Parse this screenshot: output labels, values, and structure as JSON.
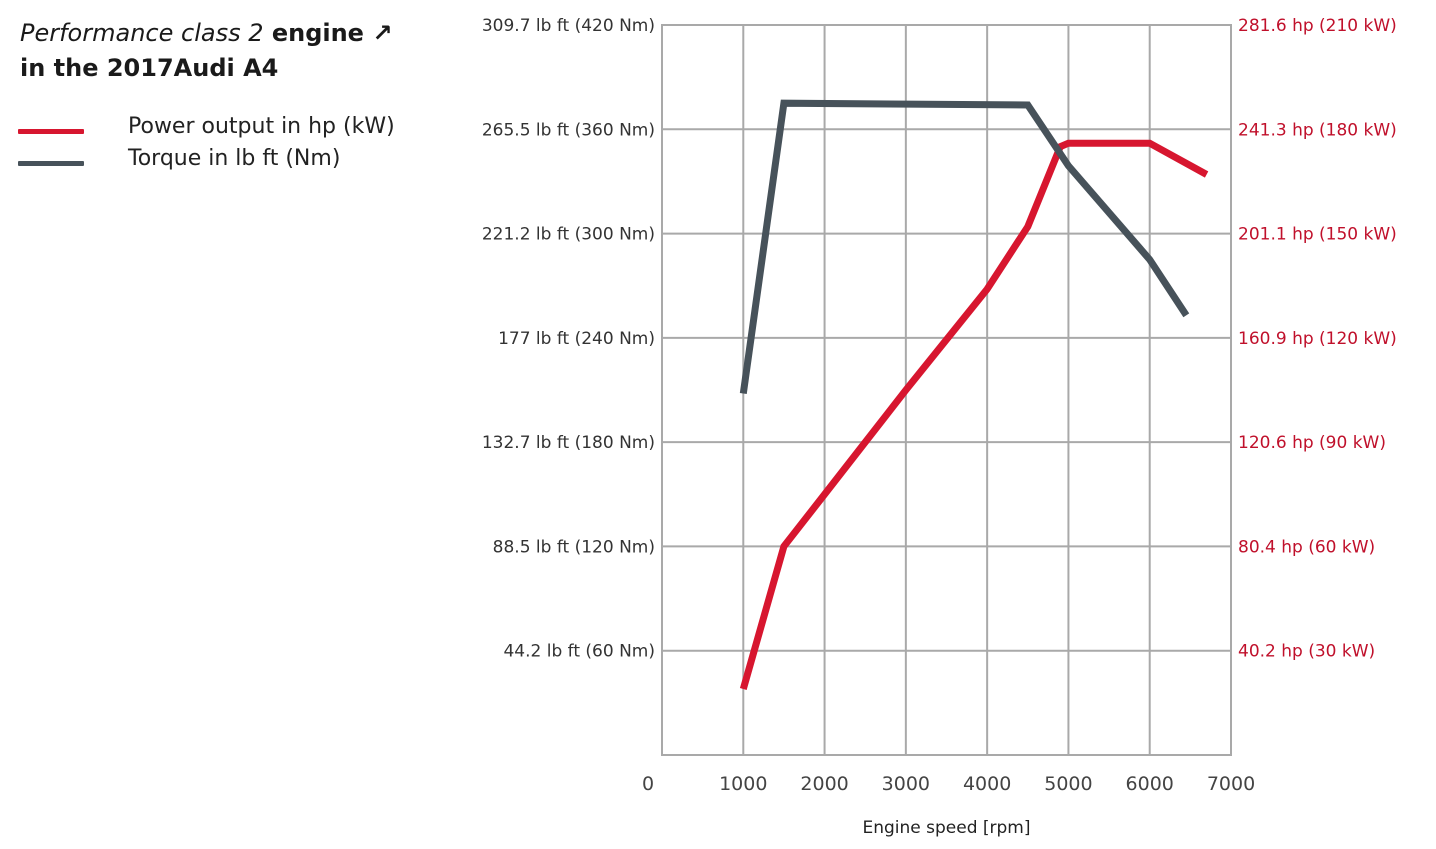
{
  "title": {
    "line1_italic": "Performance class 2",
    "line1_rest": " engine ↗",
    "line2": "in the 2017Audi A4"
  },
  "colors": {
    "power": "#d7162f",
    "torque": "#47525a",
    "grid": "#a9a9a9",
    "right_axis": "#c0102b"
  },
  "chart_data": {
    "type": "line",
    "xlabel": "Engine speed [rpm]",
    "xlim": [
      0,
      7000
    ],
    "x_ticks": [
      "0",
      "1000",
      "2000",
      "3000",
      "4000",
      "5000",
      "6000",
      "7000"
    ],
    "y_left": {
      "unit": "Nm",
      "lim": [
        0,
        420
      ],
      "ticks": [
        {
          "value": 60,
          "label": "44.2 lb ft (60 Nm)"
        },
        {
          "value": 120,
          "label": "88.5 lb ft (120 Nm)"
        },
        {
          "value": 180,
          "label": "132.7 lb ft (180 Nm)"
        },
        {
          "value": 240,
          "label": "177 lb ft (240 Nm)"
        },
        {
          "value": 300,
          "label": "221.2 lb ft (300 Nm)"
        },
        {
          "value": 360,
          "label": "265.5 lb ft (360 Nm)"
        },
        {
          "value": 420,
          "label": "309.7 lb ft (420 Nm)"
        }
      ]
    },
    "y_right": {
      "unit": "kW",
      "lim": [
        0,
        210
      ],
      "ticks": [
        {
          "value": 30,
          "label": "40.2 hp (30 kW)"
        },
        {
          "value": 60,
          "label": "80.4 hp (60 kW)"
        },
        {
          "value": 90,
          "label": "120.6 hp (90 kW)"
        },
        {
          "value": 120,
          "label": "160.9 hp (120 kW)"
        },
        {
          "value": 150,
          "label": "201.1 hp (150 kW)"
        },
        {
          "value": 180,
          "label": "241.3 hp (180 kW)"
        },
        {
          "value": 210,
          "label": "281.6 hp (210 kW)"
        }
      ]
    },
    "series": [
      {
        "name": "Power output in hp (kW)",
        "axis": "right",
        "x": [
          1000,
          1500,
          2000,
          3000,
          4000,
          4500,
          4900,
          5000,
          6000,
          6700
        ],
        "values": [
          19,
          60,
          75,
          105,
          134,
          152,
          175,
          176,
          176,
          167
        ]
      },
      {
        "name": "Torque in lb ft (Nm)",
        "axis": "left",
        "x": [
          1000,
          1500,
          4500,
          5000,
          6000,
          6450
        ],
        "values": [
          208,
          375,
          374,
          339,
          285,
          253
        ]
      }
    ],
    "grid": true,
    "legend_position": "top-left"
  }
}
